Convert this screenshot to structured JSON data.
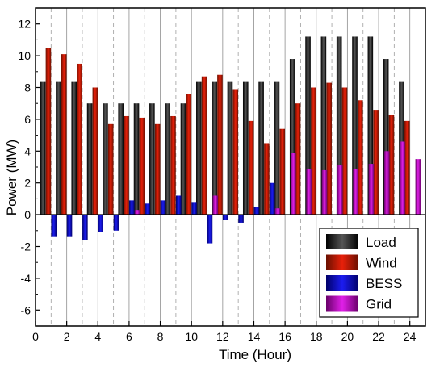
{
  "chart_data": {
    "type": "bar",
    "xlabel": "Time (Hour)",
    "ylabel": "Power (MW)",
    "xlim": [
      0,
      25
    ],
    "ylim": [
      -7,
      13
    ],
    "x_ticks": [
      "0",
      "2",
      "4",
      "6",
      "8",
      "10",
      "12",
      "14",
      "16",
      "18",
      "20",
      "22",
      "24"
    ],
    "y_ticks": [
      "-6",
      "-4",
      "-2",
      "0",
      "2",
      "4",
      "6",
      "8",
      "10",
      "12"
    ],
    "x": [
      1,
      2,
      3,
      4,
      5,
      6,
      7,
      8,
      9,
      10,
      11,
      12,
      13,
      14,
      15,
      16,
      17,
      18,
      19,
      20,
      21,
      22,
      23,
      24
    ],
    "legend_position": "bottom-right",
    "series": [
      {
        "name": "Load",
        "color": "#000000",
        "values": [
          8.4,
          8.4,
          8.4,
          7.0,
          7.0,
          7.0,
          7.0,
          7.0,
          7.0,
          7.0,
          8.4,
          8.4,
          8.4,
          8.4,
          8.4,
          8.4,
          9.8,
          11.2,
          11.2,
          11.2,
          11.2,
          11.2,
          9.8,
          8.4
        ]
      },
      {
        "name": "Wind",
        "color": "#e8200a",
        "values": [
          10.5,
          10.1,
          9.5,
          8.0,
          5.7,
          6.2,
          6.1,
          5.7,
          6.2,
          7.6,
          8.7,
          8.8,
          7.9,
          5.9,
          4.5,
          5.4,
          7.0,
          8.0,
          8.3,
          8.0,
          7.2,
          6.6,
          6.3,
          5.9
        ]
      },
      {
        "name": "BESS",
        "color": "#1c1cf0",
        "values": [
          -1.4,
          -1.4,
          -1.6,
          -1.1,
          -1.0,
          0.9,
          0.7,
          0.9,
          1.2,
          0.8,
          -1.8,
          -0.3,
          -0.5,
          0.5,
          2.0,
          0,
          0,
          0,
          0,
          0,
          0,
          0,
          0,
          0
        ]
      },
      {
        "name": "Grid",
        "color": "#e020e8",
        "values": [
          0,
          0,
          0,
          0,
          0,
          0.3,
          0,
          0,
          0,
          0,
          1.2,
          0,
          0,
          0,
          0.4,
          3.9,
          2.9,
          2.8,
          3.1,
          2.9,
          3.2,
          4.0,
          4.6,
          3.5
        ]
      }
    ]
  }
}
